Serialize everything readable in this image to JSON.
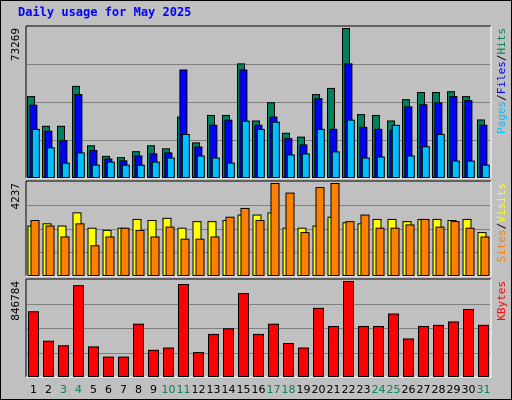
{
  "title": "Daily usage for May 2025",
  "colors": {
    "hits": "#00805c",
    "files": "#0000ff",
    "pages": "#00c0ff",
    "visits": "#ffff00",
    "sites": "#ff8000",
    "kbytes": "#ff0000",
    "weekday_label": "#000000",
    "weekend_label": "#00805c"
  },
  "chart_data": [
    {
      "type": "bar",
      "panel": "top",
      "max_label": "73269",
      "ylim": [
        0,
        73269
      ],
      "legend": [
        "Pages",
        "/",
        "Files",
        "/",
        "Hits"
      ],
      "categories": [
        "1",
        "2",
        "3",
        "4",
        "5",
        "6",
        "7",
        "8",
        "9",
        "10",
        "11",
        "12",
        "13",
        "14",
        "15",
        "16",
        "17",
        "18",
        "19",
        "20",
        "21",
        "22",
        "23",
        "24",
        "25",
        "26",
        "27",
        "28",
        "29",
        "30",
        "31"
      ],
      "weekend_days": [
        3,
        4,
        10,
        11,
        17,
        18,
        24,
        25,
        31
      ],
      "series": [
        {
          "name": "Hits",
          "values": [
            40000,
            25500,
            25500,
            45000,
            16000,
            10800,
            10200,
            13100,
            16000,
            14500,
            30000,
            17400,
            30800,
            30800,
            56000,
            28100,
            37000,
            22100,
            20200,
            41000,
            44000,
            73269,
            31200,
            30800,
            28100,
            38500,
            42000,
            42000,
            42400,
            40000,
            28600
          ]
        },
        {
          "name": "Files",
          "values": [
            35800,
            23100,
            18500,
            41000,
            13700,
            9500,
            8600,
            11000,
            12000,
            12500,
            53000,
            15400,
            26000,
            28500,
            53000,
            26000,
            30000,
            19500,
            16400,
            39000,
            24000,
            56000,
            25000,
            24000,
            23500,
            35000,
            36000,
            37000,
            40000,
            38000,
            26000
          ]
        },
        {
          "name": "Pages",
          "values": [
            24000,
            15000,
            7500,
            12500,
            6500,
            8000,
            6500,
            6500,
            8000,
            10000,
            21500,
            11000,
            10000,
            7500,
            28000,
            24000,
            27500,
            11500,
            12000,
            24000,
            13000,
            28500,
            10000,
            10500,
            26000,
            11000,
            15500,
            21500,
            8500,
            8500,
            6500
          ]
        }
      ]
    },
    {
      "type": "bar",
      "panel": "middle",
      "max_label": "4237",
      "ylim": [
        0,
        4237
      ],
      "legend": [
        "Sites",
        "/",
        "Visits"
      ],
      "categories": [
        "1",
        "2",
        "3",
        "4",
        "5",
        "6",
        "7",
        "8",
        "9",
        "10",
        "11",
        "12",
        "13",
        "14",
        "15",
        "16",
        "17",
        "18",
        "19",
        "20",
        "21",
        "22",
        "23",
        "24",
        "25",
        "26",
        "27",
        "28",
        "29",
        "30",
        "31"
      ],
      "series": [
        {
          "name": "Visits",
          "values": [
            2300,
            2400,
            2300,
            2900,
            2200,
            2100,
            2200,
            2600,
            2550,
            2650,
            2200,
            2500,
            2500,
            2550,
            2800,
            2800,
            2900,
            2200,
            2200,
            2300,
            2700,
            2450,
            2400,
            2600,
            2600,
            2500,
            2600,
            2600,
            2550,
            2600,
            2000
          ]
        },
        {
          "name": "Sites",
          "values": [
            2550,
            2300,
            1800,
            2400,
            1400,
            1800,
            2200,
            2100,
            1800,
            2250,
            1700,
            1700,
            1800,
            2700,
            3100,
            2550,
            4237,
            3800,
            2000,
            4050,
            4237,
            2500,
            2800,
            2200,
            2200,
            2350,
            2600,
            2250,
            2500,
            2200,
            1800
          ]
        }
      ]
    },
    {
      "type": "bar",
      "panel": "bottom",
      "max_label": "846784",
      "ylim": [
        0,
        846784
      ],
      "legend": [
        "KBytes"
      ],
      "categories": [
        "1",
        "2",
        "3",
        "4",
        "5",
        "6",
        "7",
        "8",
        "9",
        "10",
        "11",
        "12",
        "13",
        "14",
        "15",
        "16",
        "17",
        "18",
        "19",
        "20",
        "21",
        "22",
        "23",
        "24",
        "25",
        "26",
        "27",
        "28",
        "29",
        "30",
        "31"
      ],
      "series": [
        {
          "name": "KBytes",
          "values": [
            580000,
            320000,
            280000,
            810000,
            270000,
            180000,
            180000,
            470000,
            240000,
            260000,
            820000,
            220000,
            380000,
            430000,
            740000,
            380000,
            470000,
            300000,
            260000,
            610000,
            450000,
            846784,
            450000,
            450000,
            560000,
            340000,
            450000,
            460000,
            490000,
            600000,
            460000
          ]
        }
      ]
    }
  ]
}
